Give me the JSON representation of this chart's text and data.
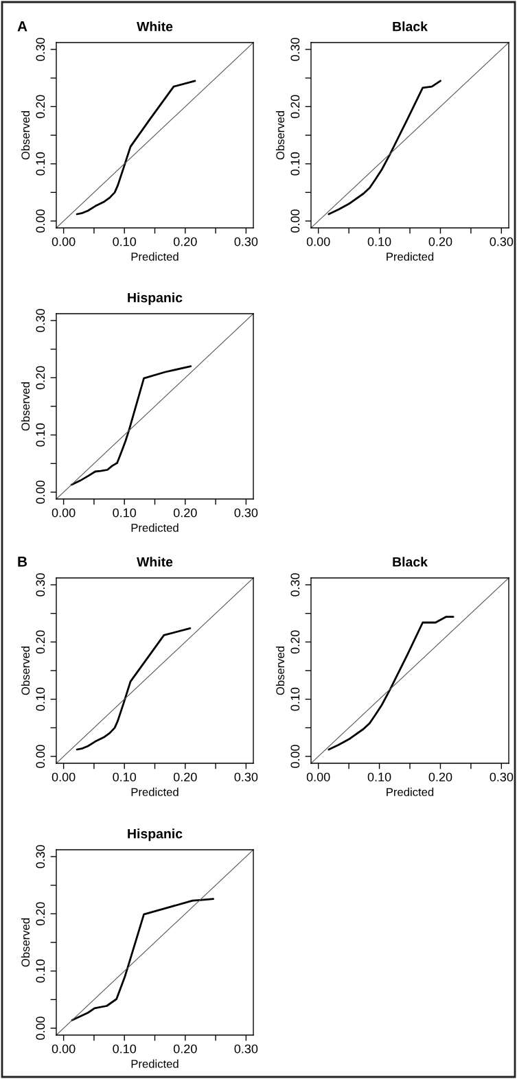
{
  "chart_data": [
    {
      "type": "line",
      "title": "White",
      "xlabel": "Predicted",
      "ylabel": "Observed",
      "annotations": [
        "A"
      ],
      "xlim": [
        -0.012,
        0.312
      ],
      "ylim": [
        -0.012,
        0.312
      ],
      "xticks": [
        {
          "value": 0,
          "label": "0.00"
        },
        {
          "value": 0.05,
          "label": null
        },
        {
          "value": 0.1,
          "label": "0.10"
        },
        {
          "value": 0.15,
          "label": null
        },
        {
          "value": 0.2,
          "label": "0.20"
        },
        {
          "value": 0.25,
          "label": null
        },
        {
          "value": 0.3,
          "label": "0.30"
        }
      ],
      "yticks": [
        {
          "value": 0,
          "label": "0.00"
        },
        {
          "value": 0.05,
          "label": null
        },
        {
          "value": 0.1,
          "label": "0.10"
        },
        {
          "value": 0.15,
          "label": null
        },
        {
          "value": 0.2,
          "label": "0.20"
        },
        {
          "value": 0.25,
          "label": null
        },
        {
          "value": 0.3,
          "label": "0.30"
        }
      ],
      "series": [
        {
          "color": "#000000",
          "x": [
            0.022,
            0.031,
            0.04,
            0.052,
            0.067,
            0.076,
            0.084,
            0.089,
            0.099,
            0.11,
            0.142,
            0.181,
            0.216
          ],
          "values": [
            0.012,
            0.014,
            0.018,
            0.026,
            0.034,
            0.041,
            0.05,
            0.062,
            0.094,
            0.13,
            0.178,
            0.235,
            0.245
          ]
        },
        {
          "color": "#555555",
          "x": [
            -0.012,
            0.312
          ],
          "values": [
            -0.012,
            0.312
          ]
        }
      ]
    },
    {
      "type": "line",
      "title": "Black",
      "xlabel": "Predicted",
      "ylabel": "Observed",
      "xlim": [
        -0.012,
        0.312
      ],
      "ylim": [
        -0.012,
        0.312
      ],
      "xticks": [
        {
          "value": 0,
          "label": "0.00"
        },
        {
          "value": 0.05,
          "label": null
        },
        {
          "value": 0.1,
          "label": "0.10"
        },
        {
          "value": 0.15,
          "label": null
        },
        {
          "value": 0.2,
          "label": "0.20"
        },
        {
          "value": 0.25,
          "label": null
        },
        {
          "value": 0.3,
          "label": "0.30"
        }
      ],
      "yticks": [
        {
          "value": 0,
          "label": "0.00"
        },
        {
          "value": 0.05,
          "label": null
        },
        {
          "value": 0.1,
          "label": "0.10"
        },
        {
          "value": 0.15,
          "label": null
        },
        {
          "value": 0.2,
          "label": "0.20"
        },
        {
          "value": 0.25,
          "label": null
        },
        {
          "value": 0.3,
          "label": "0.30"
        }
      ],
      "series": [
        {
          "color": "#000000",
          "x": [
            0.017,
            0.033,
            0.05,
            0.074,
            0.084,
            0.093,
            0.104,
            0.118,
            0.146,
            0.171,
            0.186,
            0.2
          ],
          "values": [
            0.012,
            0.02,
            0.03,
            0.048,
            0.058,
            0.072,
            0.09,
            0.118,
            0.178,
            0.233,
            0.235,
            0.245
          ]
        },
        {
          "color": "#555555",
          "x": [
            -0.012,
            0.312
          ],
          "values": [
            -0.012,
            0.312
          ]
        }
      ]
    },
    {
      "type": "line",
      "title": "Hispanic",
      "xlabel": "Predicted",
      "ylabel": "Observed",
      "xlim": [
        -0.012,
        0.312
      ],
      "ylim": [
        -0.012,
        0.312
      ],
      "xticks": [
        {
          "value": 0,
          "label": "0.00"
        },
        {
          "value": 0.05,
          "label": null
        },
        {
          "value": 0.1,
          "label": "0.10"
        },
        {
          "value": 0.15,
          "label": null
        },
        {
          "value": 0.2,
          "label": "0.20"
        },
        {
          "value": 0.25,
          "label": null
        },
        {
          "value": 0.3,
          "label": "0.30"
        }
      ],
      "yticks": [
        {
          "value": 0,
          "label": "0.00"
        },
        {
          "value": 0.05,
          "label": null
        },
        {
          "value": 0.1,
          "label": "0.10"
        },
        {
          "value": 0.15,
          "label": null
        },
        {
          "value": 0.2,
          "label": "0.20"
        },
        {
          "value": 0.25,
          "label": null
        },
        {
          "value": 0.3,
          "label": "0.30"
        }
      ],
      "series": [
        {
          "color": "#000000",
          "x": [
            0.013,
            0.027,
            0.04,
            0.052,
            0.061,
            0.072,
            0.08,
            0.088,
            0.095,
            0.102,
            0.108,
            0.132,
            0.167,
            0.209
          ],
          "values": [
            0.013,
            0.02,
            0.028,
            0.036,
            0.037,
            0.039,
            0.046,
            0.051,
            0.07,
            0.09,
            0.11,
            0.199,
            0.21,
            0.22
          ]
        },
        {
          "color": "#555555",
          "x": [
            -0.012,
            0.312
          ],
          "values": [
            -0.012,
            0.312
          ]
        }
      ]
    },
    {
      "type": "line",
      "title": "White",
      "xlabel": "Predicted",
      "ylabel": "Observed",
      "annotations": [
        "B"
      ],
      "xlim": [
        -0.012,
        0.312
      ],
      "ylim": [
        -0.012,
        0.312
      ],
      "xticks": [
        {
          "value": 0,
          "label": "0.00"
        },
        {
          "value": 0.05,
          "label": null
        },
        {
          "value": 0.1,
          "label": "0.10"
        },
        {
          "value": 0.15,
          "label": null
        },
        {
          "value": 0.2,
          "label": "0.20"
        },
        {
          "value": 0.25,
          "label": null
        },
        {
          "value": 0.3,
          "label": "0.30"
        }
      ],
      "yticks": [
        {
          "value": 0,
          "label": "0.00"
        },
        {
          "value": 0.05,
          "label": null
        },
        {
          "value": 0.1,
          "label": "0.10"
        },
        {
          "value": 0.15,
          "label": null
        },
        {
          "value": 0.2,
          "label": "0.20"
        },
        {
          "value": 0.25,
          "label": null
        },
        {
          "value": 0.3,
          "label": "0.30"
        }
      ],
      "series": [
        {
          "color": "#000000",
          "x": [
            0.022,
            0.031,
            0.04,
            0.052,
            0.067,
            0.076,
            0.084,
            0.089,
            0.099,
            0.11,
            0.142,
            0.165,
            0.208
          ],
          "values": [
            0.012,
            0.014,
            0.018,
            0.026,
            0.034,
            0.041,
            0.05,
            0.062,
            0.094,
            0.131,
            0.178,
            0.212,
            0.224
          ]
        },
        {
          "color": "#555555",
          "x": [
            -0.012,
            0.312
          ],
          "values": [
            -0.012,
            0.312
          ]
        }
      ]
    },
    {
      "type": "line",
      "title": "Black",
      "xlabel": "Predicted",
      "ylabel": "Observed",
      "xlim": [
        -0.012,
        0.312
      ],
      "ylim": [
        -0.012,
        0.312
      ],
      "xticks": [
        {
          "value": 0,
          "label": "0.00"
        },
        {
          "value": 0.05,
          "label": null
        },
        {
          "value": 0.1,
          "label": "0.10"
        },
        {
          "value": 0.15,
          "label": null
        },
        {
          "value": 0.2,
          "label": "0.20"
        },
        {
          "value": 0.25,
          "label": null
        },
        {
          "value": 0.3,
          "label": "0.30"
        }
      ],
      "yticks": [
        {
          "value": 0,
          "label": "0.00"
        },
        {
          "value": 0.05,
          "label": null
        },
        {
          "value": 0.1,
          "label": "0.10"
        },
        {
          "value": 0.15,
          "label": null
        },
        {
          "value": 0.2,
          "label": "0.20"
        },
        {
          "value": 0.25,
          "label": null
        },
        {
          "value": 0.3,
          "label": "0.30"
        }
      ],
      "series": [
        {
          "color": "#000000",
          "x": [
            0.017,
            0.033,
            0.05,
            0.074,
            0.084,
            0.093,
            0.104,
            0.118,
            0.146,
            0.171,
            0.192,
            0.209,
            0.221
          ],
          "values": [
            0.012,
            0.02,
            0.03,
            0.048,
            0.058,
            0.072,
            0.09,
            0.118,
            0.178,
            0.234,
            0.234,
            0.244,
            0.244
          ]
        },
        {
          "color": "#555555",
          "x": [
            -0.012,
            0.312
          ],
          "values": [
            -0.012,
            0.312
          ]
        }
      ]
    },
    {
      "type": "line",
      "title": "Hispanic",
      "xlabel": "Predicted",
      "ylabel": "Observed",
      "xlim": [
        -0.012,
        0.312
      ],
      "ylim": [
        -0.012,
        0.312
      ],
      "xticks": [
        {
          "value": 0,
          "label": "0.00"
        },
        {
          "value": 0.05,
          "label": null
        },
        {
          "value": 0.1,
          "label": "0.10"
        },
        {
          "value": 0.15,
          "label": null
        },
        {
          "value": 0.2,
          "label": "0.20"
        },
        {
          "value": 0.25,
          "label": null
        },
        {
          "value": 0.3,
          "label": "0.30"
        }
      ],
      "yticks": [
        {
          "value": 0,
          "label": "0.00"
        },
        {
          "value": 0.05,
          "label": null
        },
        {
          "value": 0.1,
          "label": "0.10"
        },
        {
          "value": 0.15,
          "label": null
        },
        {
          "value": 0.2,
          "label": "0.20"
        },
        {
          "value": 0.25,
          "label": null
        },
        {
          "value": 0.3,
          "label": "0.30"
        }
      ],
      "series": [
        {
          "color": "#000000",
          "x": [
            0.014,
            0.04,
            0.051,
            0.071,
            0.087,
            0.101,
            0.108,
            0.132,
            0.212,
            0.224,
            0.246
          ],
          "values": [
            0.014,
            0.027,
            0.035,
            0.039,
            0.051,
            0.091,
            0.115,
            0.199,
            0.223,
            0.224,
            0.226
          ]
        },
        {
          "color": "#555555",
          "x": [
            -0.012,
            0.312
          ],
          "values": [
            -0.012,
            0.312
          ]
        }
      ]
    }
  ]
}
